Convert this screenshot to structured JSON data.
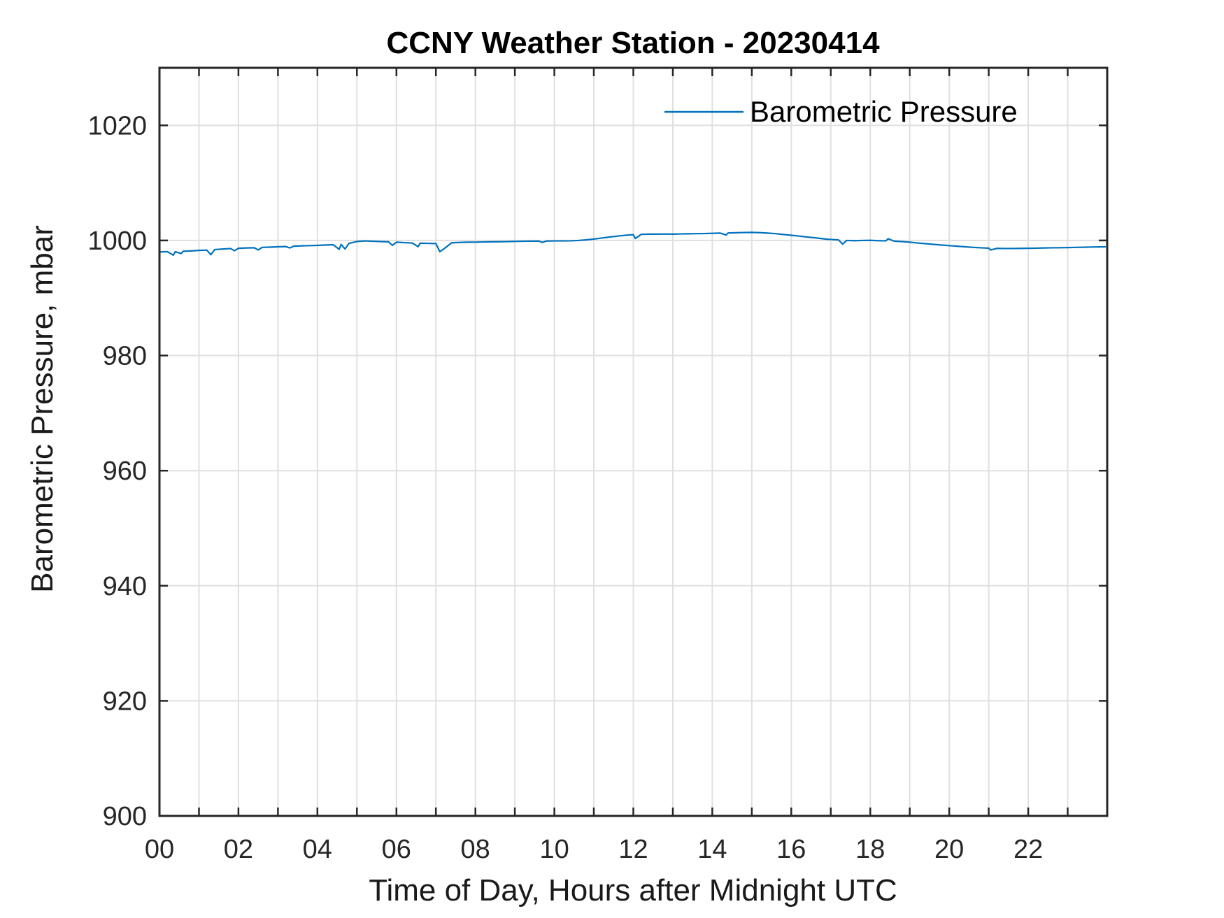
{
  "chart_data": {
    "type": "line",
    "title": "CCNY Weather Station - 20230414",
    "xlabel": "Time of Day, Hours after Midnight UTC",
    "ylabel": "Barometric Pressure, mbar",
    "xlim": [
      0,
      24
    ],
    "ylim": [
      900,
      1030
    ],
    "x_major_tick_step_hours": 1,
    "x_labeled_ticks": [
      {
        "value": 0,
        "label": "00"
      },
      {
        "value": 2,
        "label": "02"
      },
      {
        "value": 4,
        "label": "04"
      },
      {
        "value": 6,
        "label": "06"
      },
      {
        "value": 8,
        "label": "08"
      },
      {
        "value": 10,
        "label": "10"
      },
      {
        "value": 12,
        "label": "12"
      },
      {
        "value": 14,
        "label": "14"
      },
      {
        "value": 16,
        "label": "16"
      },
      {
        "value": 18,
        "label": "18"
      },
      {
        "value": 20,
        "label": "20"
      },
      {
        "value": 22,
        "label": "22"
      }
    ],
    "y_ticks": [
      {
        "value": 900,
        "label": "900"
      },
      {
        "value": 920,
        "label": "920"
      },
      {
        "value": 940,
        "label": "940"
      },
      {
        "value": 960,
        "label": "960"
      },
      {
        "value": 980,
        "label": "980"
      },
      {
        "value": 1000,
        "label": "1000"
      },
      {
        "value": 1020,
        "label": "1020"
      }
    ],
    "grid": true,
    "legend": {
      "entries": [
        "Barometric Pressure"
      ],
      "position": "northeast",
      "box": false
    },
    "series": [
      {
        "name": "Barometric Pressure",
        "color": "#0072BD",
        "x": [
          0.0,
          0.2,
          0.35,
          0.4,
          0.55,
          0.6,
          0.8,
          1.0,
          1.2,
          1.3,
          1.4,
          1.6,
          1.8,
          1.9,
          2.0,
          2.2,
          2.4,
          2.5,
          2.6,
          2.8,
          3.0,
          3.2,
          3.3,
          3.4,
          3.6,
          3.8,
          4.0,
          4.2,
          4.4,
          4.55,
          4.6,
          4.7,
          4.8,
          5.0,
          5.2,
          5.4,
          5.6,
          5.8,
          5.9,
          6.0,
          6.2,
          6.4,
          6.55,
          6.6,
          6.8,
          7.0,
          7.1,
          7.2,
          7.4,
          7.6,
          7.8,
          8.0,
          8.2,
          8.4,
          8.6,
          8.8,
          9.0,
          9.2,
          9.4,
          9.6,
          9.7,
          9.8,
          10.0,
          10.2,
          10.4,
          10.6,
          10.8,
          11.0,
          11.2,
          11.4,
          11.6,
          11.8,
          12.0,
          12.05,
          12.2,
          12.4,
          12.6,
          12.8,
          13.0,
          13.2,
          13.4,
          13.6,
          13.8,
          14.0,
          14.2,
          14.35,
          14.4,
          14.6,
          14.8,
          15.0,
          15.2,
          15.4,
          15.6,
          15.8,
          16.0,
          16.2,
          16.4,
          16.6,
          16.9,
          17.0,
          17.2,
          17.3,
          17.4,
          17.6,
          17.8,
          18.0,
          18.2,
          18.4,
          18.45,
          18.6,
          18.8,
          19.0,
          19.2,
          19.4,
          19.6,
          19.8,
          20.0,
          20.2,
          20.4,
          20.6,
          20.8,
          21.0,
          21.05,
          21.2,
          21.4,
          21.6,
          21.8,
          22.0,
          22.2,
          22.4,
          22.6,
          22.8,
          23.0,
          23.2,
          23.4,
          23.6,
          23.8,
          23.95
        ],
        "y": [
          998.0,
          998.06,
          997.45,
          998.05,
          997.72,
          998.12,
          998.18,
          998.27,
          998.33,
          997.52,
          998.42,
          998.5,
          998.6,
          998.22,
          998.64,
          998.7,
          998.73,
          998.36,
          998.8,
          998.84,
          998.9,
          998.94,
          998.7,
          999.0,
          999.06,
          999.1,
          999.14,
          999.2,
          999.26,
          998.46,
          999.3,
          998.52,
          999.5,
          999.82,
          999.92,
          999.86,
          999.8,
          999.76,
          999.15,
          999.7,
          999.62,
          999.56,
          998.92,
          999.52,
          999.5,
          999.46,
          998.05,
          998.52,
          999.6,
          999.66,
          999.7,
          999.7,
          999.74,
          999.76,
          999.78,
          999.8,
          999.84,
          999.86,
          999.88,
          999.9,
          999.66,
          999.9,
          999.92,
          999.92,
          999.94,
          1000.0,
          1000.1,
          1000.24,
          1000.42,
          1000.6,
          1000.76,
          1000.9,
          1001.0,
          1000.35,
          1001.06,
          1001.1,
          1001.1,
          1001.12,
          1001.1,
          1001.14,
          1001.16,
          1001.18,
          1001.2,
          1001.24,
          1001.28,
          1000.95,
          1001.3,
          1001.34,
          1001.38,
          1001.4,
          1001.36,
          1001.28,
          1001.18,
          1001.04,
          1000.9,
          1000.76,
          1000.6,
          1000.46,
          1000.22,
          1000.18,
          1000.08,
          999.35,
          1000.0,
          999.96,
          1000.0,
          1000.02,
          999.96,
          999.94,
          1000.3,
          999.88,
          999.8,
          999.7,
          999.56,
          999.44,
          999.32,
          999.2,
          999.1,
          999.0,
          998.9,
          998.8,
          998.72,
          998.66,
          998.34,
          998.62,
          998.6,
          998.6,
          998.62,
          998.64,
          998.66,
          998.7,
          998.72,
          998.74,
          998.76,
          998.8,
          998.82,
          998.86,
          998.88,
          998.9
        ]
      }
    ]
  },
  "colors": {
    "line": "#0072BD",
    "grid": "#E0E0E0",
    "axis": "#262626",
    "tick_label": "#262626",
    "title": "#000000",
    "label": "#1A1A1A",
    "background": "#FFFFFF"
  }
}
